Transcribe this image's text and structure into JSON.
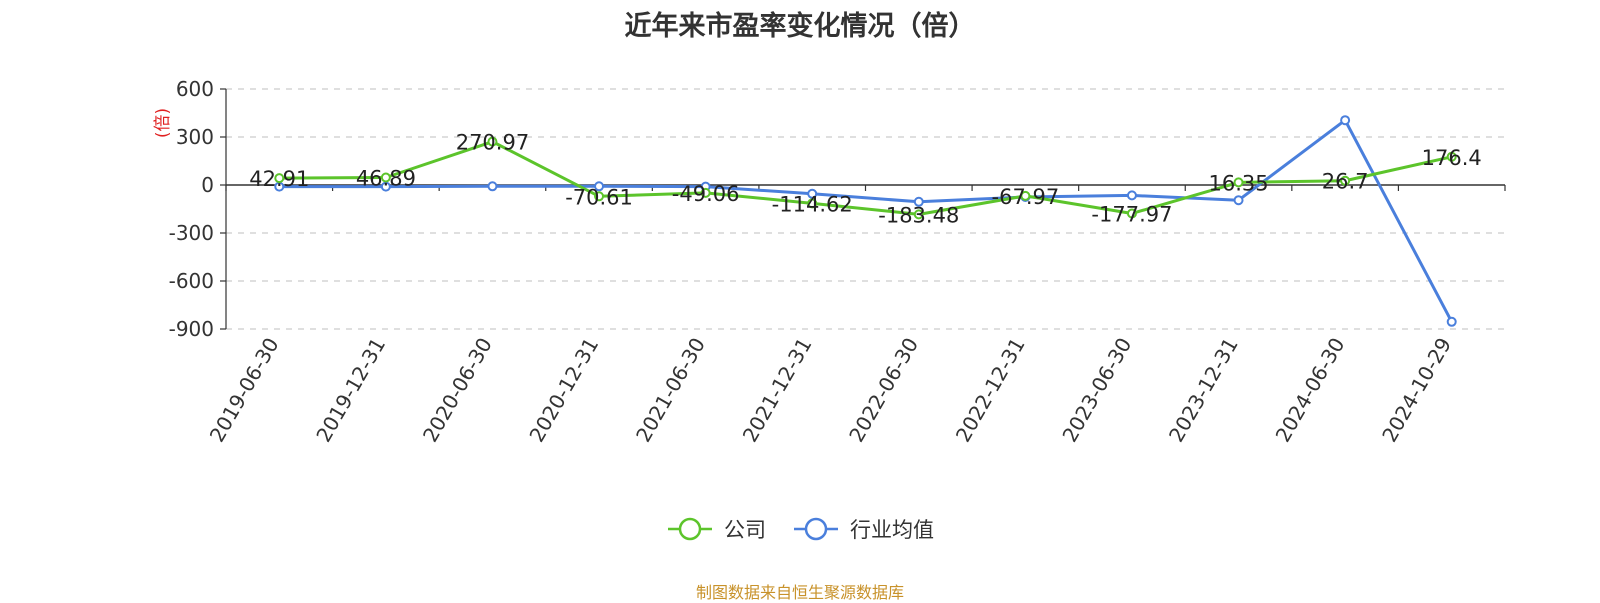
{
  "chart_data": {
    "type": "line",
    "title": "近年来市盈率变化情况（倍）",
    "ylabel": "(倍)",
    "categories": [
      "2019-06-30",
      "2019-12-31",
      "2020-06-30",
      "2020-12-31",
      "2021-06-30",
      "2021-12-31",
      "2022-06-30",
      "2022-12-31",
      "2023-06-30",
      "2023-12-31",
      "2024-06-30",
      "2024-10-29"
    ],
    "ylim": [
      -900,
      600
    ],
    "yticks": [
      600,
      300,
      0,
      -300,
      -600,
      -900
    ],
    "ytick_labels": [
      "600",
      "300",
      "0",
      "-300",
      "-600",
      "-900"
    ],
    "grid": true,
    "legend_position": "bottom",
    "series": [
      {
        "name": "公司",
        "color": "#5cc42b",
        "values": [
          42.91,
          46.89,
          270.97,
          -70.61,
          -49.06,
          -114.62,
          -183.48,
          -67.97,
          -177.97,
          16.35,
          26.7,
          176.4
        ],
        "labels": [
          "42.91",
          "46.89",
          "270.97",
          "-70.61",
          "-49.06",
          "-114.62",
          "-183.48",
          "-67.97",
          "-177.97",
          "16.35",
          "26.7",
          "176.4"
        ]
      },
      {
        "name": "行业均值",
        "color": "#4a7fdc",
        "values": [
          -10,
          -10,
          -8,
          -8,
          -10,
          -55,
          -105,
          -75,
          -65,
          -95,
          405,
          -855
        ]
      }
    ]
  },
  "source_note": "制图数据来自恒生聚源数据库"
}
